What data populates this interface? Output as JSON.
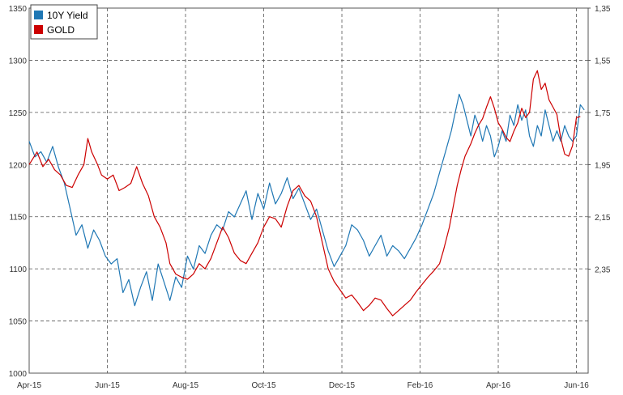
{
  "chart_data": {
    "type": "line",
    "title": "",
    "legend_position": "top-left",
    "grid": true,
    "x_ticks": [
      "Apr-15",
      "Jun-15",
      "Aug-15",
      "Oct-15",
      "Dec-15",
      "Feb-16",
      "Apr-16",
      "Jun-16"
    ],
    "y_left": {
      "label": "",
      "ylim": [
        1000,
        1350
      ],
      "ticks": [
        "1000",
        "1050",
        "1100",
        "1150",
        "1200",
        "1250",
        "1300",
        "1350"
      ]
    },
    "y_right": {
      "label": "",
      "inverted": true,
      "ylim": [
        1.35,
        2.55
      ],
      "ticks": [
        "1,35",
        "1,55",
        "1,75",
        "1,95",
        "2,15",
        "2,35"
      ]
    },
    "x_range_months": [
      0,
      14.3
    ],
    "series": [
      {
        "name": "10Y Yield",
        "axis": "right",
        "color": "#1f77b4",
        "points": [
          [
            0.0,
            1.86
          ],
          [
            0.15,
            1.92
          ],
          [
            0.3,
            1.9
          ],
          [
            0.45,
            1.94
          ],
          [
            0.6,
            1.88
          ],
          [
            0.75,
            1.96
          ],
          [
            0.9,
            2.02
          ],
          [
            1.05,
            2.12
          ],
          [
            1.2,
            2.22
          ],
          [
            1.35,
            2.18
          ],
          [
            1.5,
            2.27
          ],
          [
            1.65,
            2.2
          ],
          [
            1.8,
            2.24
          ],
          [
            1.95,
            2.3
          ],
          [
            2.1,
            2.33
          ],
          [
            2.25,
            2.31
          ],
          [
            2.4,
            2.44
          ],
          [
            2.55,
            2.39
          ],
          [
            2.7,
            2.49
          ],
          [
            2.85,
            2.42
          ],
          [
            3.0,
            2.36
          ],
          [
            3.15,
            2.47
          ],
          [
            3.3,
            2.33
          ],
          [
            3.45,
            2.4
          ],
          [
            3.6,
            2.47
          ],
          [
            3.75,
            2.38
          ],
          [
            3.9,
            2.42
          ],
          [
            4.05,
            2.3
          ],
          [
            4.2,
            2.35
          ],
          [
            4.35,
            2.26
          ],
          [
            4.5,
            2.29
          ],
          [
            4.65,
            2.22
          ],
          [
            4.8,
            2.18
          ],
          [
            4.95,
            2.2
          ],
          [
            5.1,
            2.13
          ],
          [
            5.25,
            2.15
          ],
          [
            5.4,
            2.1
          ],
          [
            5.55,
            2.05
          ],
          [
            5.7,
            2.16
          ],
          [
            5.85,
            2.06
          ],
          [
            6.0,
            2.12
          ],
          [
            6.15,
            2.02
          ],
          [
            6.3,
            2.1
          ],
          [
            6.45,
            2.06
          ],
          [
            6.6,
            2.0
          ],
          [
            6.75,
            2.08
          ],
          [
            6.9,
            2.04
          ],
          [
            7.05,
            2.1
          ],
          [
            7.2,
            2.16
          ],
          [
            7.35,
            2.12
          ],
          [
            7.5,
            2.2
          ],
          [
            7.65,
            2.28
          ],
          [
            7.8,
            2.34
          ],
          [
            7.95,
            2.3
          ],
          [
            8.1,
            2.26
          ],
          [
            8.25,
            2.18
          ],
          [
            8.4,
            2.2
          ],
          [
            8.55,
            2.24
          ],
          [
            8.7,
            2.3
          ],
          [
            8.85,
            2.26
          ],
          [
            9.0,
            2.22
          ],
          [
            9.15,
            2.3
          ],
          [
            9.3,
            2.26
          ],
          [
            9.45,
            2.28
          ],
          [
            9.6,
            2.31
          ],
          [
            9.75,
            2.27
          ],
          [
            9.9,
            2.23
          ],
          [
            10.05,
            2.18
          ],
          [
            10.2,
            2.12
          ],
          [
            10.35,
            2.06
          ],
          [
            10.5,
            1.98
          ],
          [
            10.65,
            1.9
          ],
          [
            10.8,
            1.82
          ],
          [
            10.9,
            1.75
          ],
          [
            11.0,
            1.68
          ],
          [
            11.1,
            1.72
          ],
          [
            11.2,
            1.78
          ],
          [
            11.3,
            1.84
          ],
          [
            11.4,
            1.76
          ],
          [
            11.5,
            1.8
          ],
          [
            11.6,
            1.86
          ],
          [
            11.7,
            1.8
          ],
          [
            11.8,
            1.84
          ],
          [
            11.9,
            1.92
          ],
          [
            12.0,
            1.88
          ],
          [
            12.1,
            1.82
          ],
          [
            12.2,
            1.86
          ],
          [
            12.3,
            1.76
          ],
          [
            12.4,
            1.8
          ],
          [
            12.5,
            1.72
          ],
          [
            12.6,
            1.78
          ],
          [
            12.7,
            1.74
          ],
          [
            12.8,
            1.84
          ],
          [
            12.9,
            1.88
          ],
          [
            13.0,
            1.8
          ],
          [
            13.1,
            1.84
          ],
          [
            13.2,
            1.74
          ],
          [
            13.3,
            1.8
          ],
          [
            13.4,
            1.86
          ],
          [
            13.5,
            1.82
          ],
          [
            13.6,
            1.86
          ],
          [
            13.7,
            1.8
          ],
          [
            13.8,
            1.84
          ],
          [
            13.9,
            1.86
          ],
          [
            14.0,
            1.84
          ],
          [
            14.1,
            1.72
          ],
          [
            14.2,
            1.74
          ]
        ]
      },
      {
        "name": "GOLD",
        "axis": "left",
        "color": "#cc0000",
        "points": [
          [
            0.0,
            1200
          ],
          [
            0.2,
            1212
          ],
          [
            0.35,
            1198
          ],
          [
            0.5,
            1205
          ],
          [
            0.65,
            1195
          ],
          [
            0.8,
            1190
          ],
          [
            0.95,
            1180
          ],
          [
            1.1,
            1178
          ],
          [
            1.25,
            1190
          ],
          [
            1.4,
            1200
          ],
          [
            1.5,
            1225
          ],
          [
            1.6,
            1212
          ],
          [
            1.75,
            1200
          ],
          [
            1.85,
            1190
          ],
          [
            2.0,
            1186
          ],
          [
            2.15,
            1190
          ],
          [
            2.3,
            1175
          ],
          [
            2.45,
            1178
          ],
          [
            2.6,
            1182
          ],
          [
            2.75,
            1198
          ],
          [
            2.9,
            1182
          ],
          [
            3.05,
            1170
          ],
          [
            3.2,
            1150
          ],
          [
            3.35,
            1140
          ],
          [
            3.5,
            1125
          ],
          [
            3.6,
            1105
          ],
          [
            3.75,
            1095
          ],
          [
            3.9,
            1092
          ],
          [
            4.05,
            1090
          ],
          [
            4.2,
            1095
          ],
          [
            4.35,
            1105
          ],
          [
            4.5,
            1100
          ],
          [
            4.65,
            1110
          ],
          [
            4.8,
            1125
          ],
          [
            4.95,
            1140
          ],
          [
            5.1,
            1130
          ],
          [
            5.25,
            1115
          ],
          [
            5.4,
            1108
          ],
          [
            5.55,
            1105
          ],
          [
            5.7,
            1115
          ],
          [
            5.85,
            1125
          ],
          [
            6.0,
            1140
          ],
          [
            6.15,
            1150
          ],
          [
            6.3,
            1148
          ],
          [
            6.45,
            1140
          ],
          [
            6.6,
            1160
          ],
          [
            6.75,
            1175
          ],
          [
            6.9,
            1180
          ],
          [
            7.05,
            1170
          ],
          [
            7.2,
            1165
          ],
          [
            7.35,
            1150
          ],
          [
            7.5,
            1125
          ],
          [
            7.65,
            1100
          ],
          [
            7.8,
            1088
          ],
          [
            7.95,
            1080
          ],
          [
            8.1,
            1072
          ],
          [
            8.25,
            1075
          ],
          [
            8.4,
            1068
          ],
          [
            8.55,
            1060
          ],
          [
            8.7,
            1065
          ],
          [
            8.85,
            1072
          ],
          [
            9.0,
            1070
          ],
          [
            9.15,
            1062
          ],
          [
            9.3,
            1055
          ],
          [
            9.45,
            1060
          ],
          [
            9.6,
            1065
          ],
          [
            9.75,
            1070
          ],
          [
            9.9,
            1078
          ],
          [
            10.05,
            1085
          ],
          [
            10.2,
            1092
          ],
          [
            10.35,
            1098
          ],
          [
            10.5,
            1105
          ],
          [
            10.6,
            1118
          ],
          [
            10.75,
            1140
          ],
          [
            10.85,
            1160
          ],
          [
            10.95,
            1180
          ],
          [
            11.05,
            1195
          ],
          [
            11.15,
            1208
          ],
          [
            11.3,
            1220
          ],
          [
            11.4,
            1230
          ],
          [
            11.5,
            1238
          ],
          [
            11.6,
            1244
          ],
          [
            11.7,
            1255
          ],
          [
            11.8,
            1265
          ],
          [
            11.9,
            1254
          ],
          [
            12.0,
            1240
          ],
          [
            12.1,
            1234
          ],
          [
            12.2,
            1226
          ],
          [
            12.3,
            1222
          ],
          [
            12.4,
            1232
          ],
          [
            12.5,
            1240
          ],
          [
            12.6,
            1254
          ],
          [
            12.7,
            1245
          ],
          [
            12.8,
            1250
          ],
          [
            12.9,
            1282
          ],
          [
            13.0,
            1290
          ],
          [
            13.1,
            1272
          ],
          [
            13.2,
            1278
          ],
          [
            13.3,
            1262
          ],
          [
            13.4,
            1255
          ],
          [
            13.5,
            1248
          ],
          [
            13.6,
            1225
          ],
          [
            13.7,
            1210
          ],
          [
            13.8,
            1208
          ],
          [
            13.9,
            1218
          ],
          [
            14.0,
            1245
          ],
          [
            14.1,
            1246
          ]
        ]
      }
    ]
  }
}
